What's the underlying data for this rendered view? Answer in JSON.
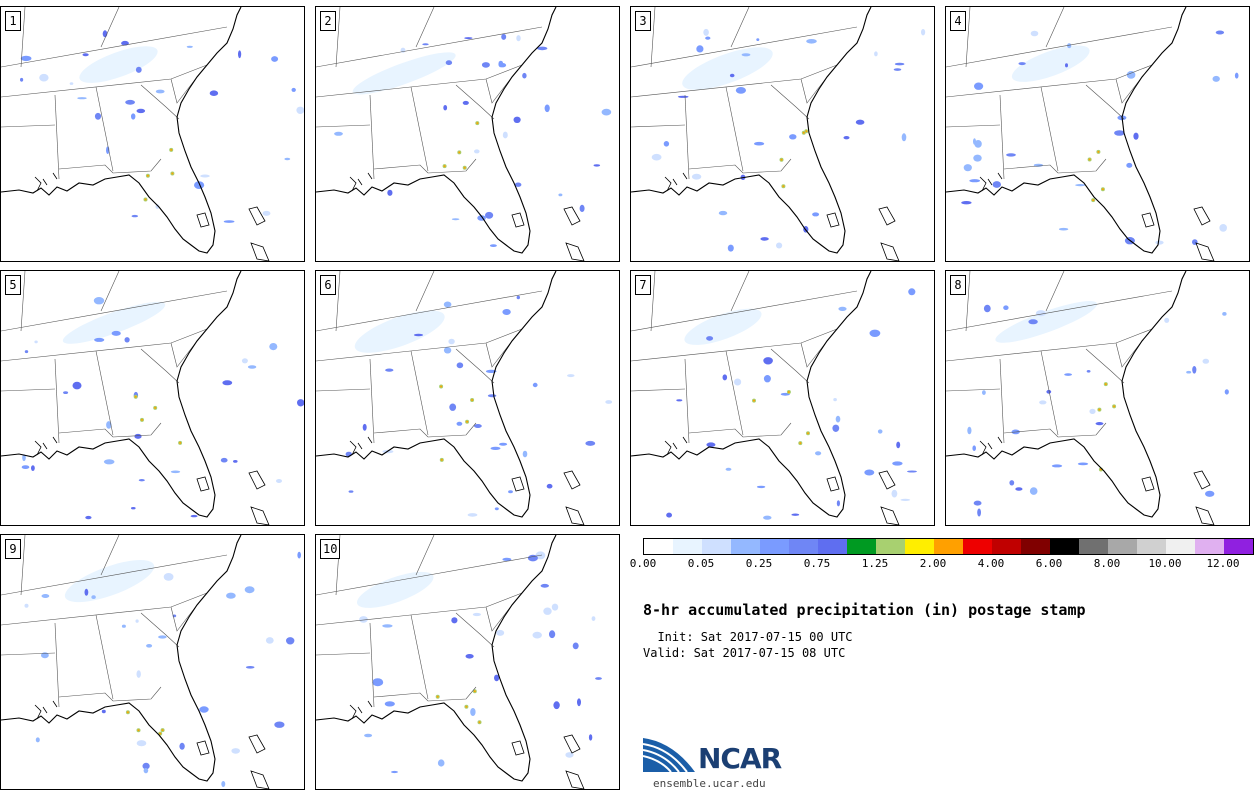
{
  "panels": [
    {
      "label": "1"
    },
    {
      "label": "2"
    },
    {
      "label": "3"
    },
    {
      "label": "4"
    },
    {
      "label": "5"
    },
    {
      "label": "6"
    },
    {
      "label": "7"
    },
    {
      "label": "8"
    },
    {
      "label": "9"
    },
    {
      "label": "10"
    }
  ],
  "colorbar": {
    "colors": [
      "#ffffff",
      "#e8f4ff",
      "#cfe0ff",
      "#94b8ff",
      "#7a9bff",
      "#6f86f5",
      "#5f6ef0",
      "#009a22",
      "#a8d070",
      "#ffee00",
      "#ffa000",
      "#ee0000",
      "#c00000",
      "#800000",
      "#000000",
      "#707070",
      "#a8a8a8",
      "#d0d0d0",
      "#f0f0f0",
      "#e0b0f0",
      "#9020e0"
    ],
    "tick_labels": [
      "0.00",
      "0.05",
      "0.25",
      "0.75",
      "1.25",
      "2.00",
      "4.00",
      "6.00",
      "8.00",
      "10.00",
      "12.00"
    ]
  },
  "title": "8-hr accumulated precipitation (in) postage stamp",
  "init_line": "  Init: Sat 2017-07-15 00 UTC",
  "valid_line": "Valid: Sat 2017-07-15 08 UTC",
  "logo": {
    "text": "NCAR",
    "url": "ensemble.ucar.edu"
  }
}
